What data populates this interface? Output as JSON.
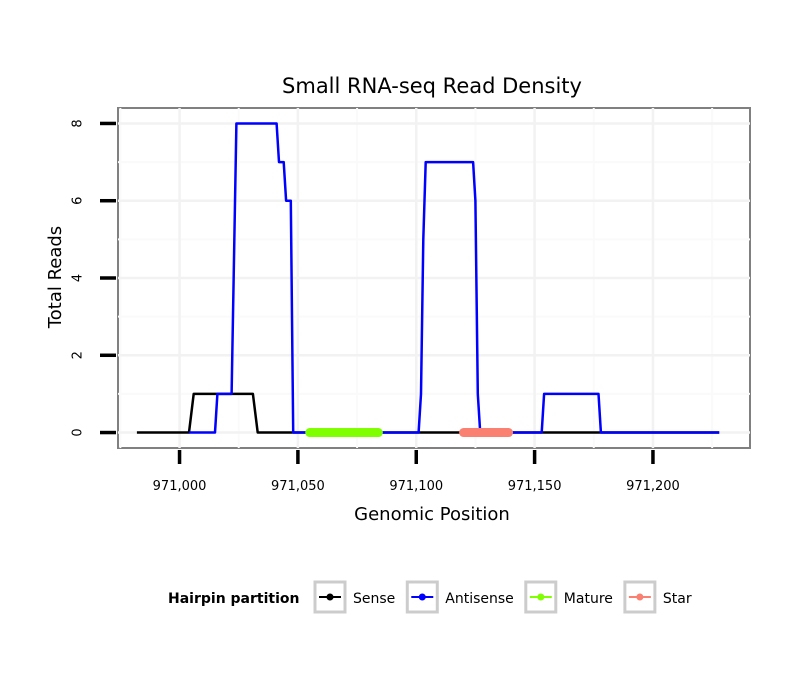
{
  "chart_data": {
    "type": "line",
    "title": "Small RNA-seq Read Density",
    "xlabel": "Genomic Position",
    "ylabel": "Total Reads",
    "xlim": [
      970974,
      971241
    ],
    "ylim": [
      -0.4,
      8.4
    ],
    "x_ticks": [
      971000,
      971050,
      971100,
      971150,
      971200
    ],
    "x_tick_labels": [
      "971,000",
      "971,050",
      "971,100",
      "971,150",
      "971,200"
    ],
    "y_ticks": [
      0,
      2,
      4,
      6,
      8
    ],
    "y_tick_labels": [
      "0",
      "2",
      "4",
      "6",
      "8"
    ],
    "grid": true,
    "series": [
      {
        "name": "Sense",
        "color": "#000000",
        "kind": "line",
        "x": [
          970982,
          971004,
          971006,
          971031,
          971033,
          971228
        ],
        "y": [
          0,
          0,
          1,
          1,
          0,
          0
        ]
      },
      {
        "name": "Antisense",
        "color": "#0000ff",
        "kind": "line",
        "x": [
          971004,
          971015,
          971016,
          971022,
          971024,
          971041,
          971042,
          971044,
          971045,
          971047,
          971048,
          971101,
          971102,
          971103,
          971104,
          971124,
          971125,
          971126,
          971127,
          971153,
          971154,
          971177,
          971178,
          971228
        ],
        "y": [
          0,
          0,
          1,
          1,
          8,
          8,
          7,
          7,
          6,
          6,
          0,
          0,
          1,
          5,
          7,
          7,
          6,
          1,
          0,
          0,
          1,
          1,
          0,
          0
        ]
      },
      {
        "name": "Mature",
        "color": "#7fff00",
        "kind": "segment",
        "x": [
          971055,
          971084
        ],
        "y": [
          0,
          0
        ]
      },
      {
        "name": "Star",
        "color": "#fa8072",
        "kind": "segment",
        "x": [
          971120,
          971139
        ],
        "y": [
          0,
          0
        ]
      }
    ],
    "legend": {
      "title": "Hairpin partition",
      "position": "bottom",
      "entries": [
        "Sense",
        "Antisense",
        "Mature",
        "Star"
      ]
    }
  }
}
